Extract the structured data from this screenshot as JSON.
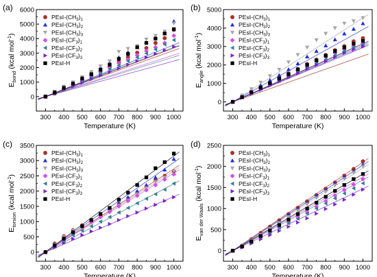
{
  "colors": {
    "PEsI-(CH3)1": "#a83228",
    "PEsI-(CH3)2": "#1f2ed6",
    "PEsI-(CH3)3": "#a6a6a6",
    "PEsI-(CF3)1": "#d44ee8",
    "PEsI-(CF3)2": "#35808f",
    "PEsI-(CF3)3": "#7a24c8",
    "PEsI-H": "#000000"
  },
  "chart_data": [
    {
      "type": "scatter",
      "panel": "(a)",
      "ylabel": "E",
      "ylabel_sub": "bond",
      "ylabel_unit": " (kcal mol",
      "ylabel_unit_sup": "-1",
      "ylabel_unit_end": ")",
      "xlabel": "Temperature (K)",
      "xlim": [
        250,
        1050
      ],
      "ylim": [
        -1000,
        6000
      ],
      "xticks": [
        300,
        400,
        500,
        600,
        700,
        800,
        900,
        1000
      ],
      "yticks": [
        0,
        1000,
        2000,
        3000,
        4000,
        5000,
        6000
      ],
      "legend_position": "top-left",
      "x": [
        300,
        350,
        400,
        450,
        500,
        550,
        600,
        650,
        700,
        750,
        800,
        850,
        900,
        950,
        1000
      ],
      "series": [
        {
          "name": "PEsI-(CH3)1",
          "base": "PEsI-(CH",
          "sub": "3",
          "suffix": ")",
          "index": "1",
          "marker": "circle",
          "slope": 4.55,
          "values": [
            0,
            210,
            520,
            820,
            1100,
            1430,
            1750,
            2060,
            2380,
            2720,
            3030,
            3350,
            3700,
            4030,
            4600
          ]
        },
        {
          "name": "PEsI-(CH3)2",
          "base": "PEsI-(CH",
          "sub": "3",
          "suffix": ")",
          "index": "2",
          "marker": "triangle-up",
          "slope": 5.1,
          "values": [
            0,
            300,
            640,
            960,
            1300,
            1650,
            2000,
            2340,
            2700,
            3050,
            3400,
            3750,
            4100,
            4480,
            5200
          ]
        },
        {
          "name": "PEsI-(CH3)3",
          "base": "PEsI-(CH",
          "sub": "3",
          "suffix": ")",
          "index": "3",
          "marker": "triangle-down",
          "slope": 4.9,
          "values": [
            0,
            350,
            700,
            1000,
            1350,
            1700,
            2100,
            2450,
            3100,
            3300,
            3500,
            3950,
            4200,
            4500,
            5050
          ]
        },
        {
          "name": "PEsI-(CF3)1",
          "base": "PEsI-(CF",
          "sub": "3",
          "suffix": ")",
          "index": "1",
          "marker": "diamond",
          "slope": 4.1,
          "values": [
            0,
            260,
            560,
            850,
            1150,
            1450,
            1700,
            2000,
            2300,
            2550,
            2850,
            3150,
            3400,
            3700,
            4200
          ]
        },
        {
          "name": "PEsI-(CF3)2",
          "base": "PEsI-(CF",
          "sub": "3",
          "suffix": ")",
          "index": "2",
          "marker": "triangle-left",
          "slope": 3.9,
          "values": [
            0,
            260,
            520,
            800,
            1080,
            1350,
            1620,
            1900,
            2150,
            2450,
            2700,
            2980,
            3250,
            3600,
            3900
          ]
        },
        {
          "name": "PEsI-(CF3)3",
          "base": "PEsI-(CF",
          "sub": "3",
          "suffix": ")",
          "index": "3",
          "marker": "triangle-right",
          "slope": 3.5,
          "values": [
            0,
            220,
            470,
            700,
            950,
            1200,
            1450,
            1700,
            1950,
            2200,
            2450,
            2700,
            2950,
            3200,
            3450
          ]
        },
        {
          "name": "PEsI-H",
          "base": "PEsI-H",
          "sub": "",
          "suffix": "",
          "index": "",
          "marker": "square",
          "slope": 4.8,
          "values": [
            0,
            280,
            600,
            900,
            1250,
            1550,
            1850,
            2200,
            2600,
            2950,
            3400,
            3700,
            4000,
            4350,
            4650
          ]
        }
      ]
    },
    {
      "type": "scatter",
      "panel": "(b)",
      "ylabel": "E",
      "ylabel_sub": "angle",
      "ylabel_unit": " (kcal mol",
      "ylabel_unit_sup": "-1",
      "ylabel_unit_end": ")",
      "xlabel": "Temperature (K)",
      "xlim": [
        250,
        1050
      ],
      "ylim": [
        -500,
        5000
      ],
      "xticks": [
        300,
        400,
        500,
        600,
        700,
        800,
        900,
        1000
      ],
      "yticks": [
        0,
        1000,
        2000,
        3000,
        4000,
        5000
      ],
      "legend_position": "top-left",
      "x": [
        300,
        350,
        400,
        450,
        500,
        550,
        600,
        650,
        700,
        750,
        800,
        850,
        900,
        950,
        1000
      ],
      "series": [
        {
          "name": "PEsI-(CH3)1",
          "base": "PEsI-(CH",
          "sub": "3",
          "suffix": ")",
          "index": "1",
          "marker": "circle",
          "slope": 3.55,
          "values": [
            0,
            260,
            520,
            780,
            1020,
            1280,
            1530,
            1780,
            2050,
            2290,
            2540,
            2800,
            3020,
            3280,
            3450
          ]
        },
        {
          "name": "PEsI-(CH3)2",
          "base": "PEsI-(CH",
          "sub": "3",
          "suffix": ")",
          "index": "2",
          "marker": "triangle-up",
          "slope": 5.6,
          "values": [
            0,
            320,
            620,
            900,
            1180,
            1450,
            1760,
            2080,
            2450,
            2750,
            3050,
            3380,
            3700,
            3950,
            4250
          ]
        },
        {
          "name": "PEsI-(CH3)3",
          "base": "PEsI-(CH",
          "sub": "3",
          "suffix": ")",
          "index": "3",
          "marker": "triangle-down",
          "slope": 6.5,
          "values": [
            0,
            350,
            700,
            1050,
            1400,
            1750,
            2150,
            2550,
            2950,
            3350,
            3700,
            4000,
            4250,
            4380,
            4550
          ]
        },
        {
          "name": "PEsI-(CF3)1",
          "base": "PEsI-(CF",
          "sub": "3",
          "suffix": ")",
          "index": "1",
          "marker": "diamond",
          "slope": 4.4,
          "values": [
            0,
            250,
            500,
            720,
            950,
            1200,
            1450,
            1700,
            1950,
            2200,
            2450,
            2650,
            2850,
            3000,
            3150
          ]
        },
        {
          "name": "PEsI-(CF3)2",
          "base": "PEsI-(CF",
          "sub": "3",
          "suffix": ")",
          "index": "2",
          "marker": "triangle-left",
          "slope": 4.3,
          "values": [
            0,
            240,
            480,
            700,
            930,
            1150,
            1380,
            1620,
            1850,
            2080,
            2300,
            2520,
            2750,
            2950,
            3100
          ]
        },
        {
          "name": "PEsI-(CF3)3",
          "base": "PEsI-(CF",
          "sub": "3",
          "suffix": ")",
          "index": "3",
          "marker": "triangle-right",
          "slope": 4.2,
          "values": [
            0,
            220,
            440,
            650,
            880,
            1100,
            1320,
            1550,
            1780,
            2000,
            2200,
            2420,
            2650,
            2830,
            3000
          ]
        },
        {
          "name": "PEsI-H",
          "base": "PEsI-H",
          "sub": "",
          "suffix": "",
          "index": "",
          "marker": "square",
          "slope": 4.5,
          "values": [
            0,
            260,
            520,
            770,
            1010,
            1260,
            1500,
            1760,
            2000,
            2250,
            2500,
            2750,
            2950,
            3150,
            3300
          ]
        }
      ]
    },
    {
      "type": "scatter",
      "panel": "(c)",
      "ylabel": "E",
      "ylabel_sub": "torsion",
      "ylabel_unit": " (kcal mol",
      "ylabel_unit_sup": "-1",
      "ylabel_unit_end": ")",
      "xlabel": "Temperature (K)",
      "xlim": [
        250,
        1050
      ],
      "ylim": [
        -300,
        3500
      ],
      "xticks": [
        300,
        400,
        500,
        600,
        700,
        800,
        900,
        1000
      ],
      "yticks": [
        0,
        500,
        1000,
        1500,
        2000,
        2500,
        3000,
        3500
      ],
      "legend_position": "top-left",
      "x": [
        300,
        350,
        400,
        450,
        500,
        550,
        600,
        650,
        700,
        750,
        800,
        850,
        900,
        950,
        1000
      ],
      "series": [
        {
          "name": "PEsI-(CH3)1",
          "base": "PEsI-(CH",
          "sub": "3",
          "suffix": ")",
          "index": "1",
          "marker": "circle",
          "slope": 3.9,
          "values": [
            0,
            280,
            520,
            720,
            880,
            1050,
            1230,
            1400,
            1580,
            1750,
            1950,
            2150,
            2350,
            2500,
            2650
          ]
        },
        {
          "name": "PEsI-(CH3)2",
          "base": "PEsI-(CH",
          "sub": "3",
          "suffix": ")",
          "index": "2",
          "marker": "triangle-up",
          "slope": 4.2,
          "values": [
            0,
            250,
            480,
            680,
            860,
            1030,
            1210,
            1400,
            1600,
            1800,
            2000,
            2200,
            2450,
            2700,
            3050
          ]
        },
        {
          "name": "PEsI-(CH3)3",
          "base": "PEsI-(CH",
          "sub": "3",
          "suffix": ")",
          "index": "3",
          "marker": "triangle-down",
          "slope": 3.8,
          "values": [
            0,
            250,
            500,
            700,
            850,
            1000,
            1180,
            1350,
            1530,
            1700,
            1900,
            2100,
            2300,
            2450,
            2650
          ]
        },
        {
          "name": "PEsI-(CF3)1",
          "base": "PEsI-(CF",
          "sub": "3",
          "suffix": ")",
          "index": "1",
          "marker": "diamond",
          "slope": 3.7,
          "values": [
            0,
            230,
            450,
            650,
            820,
            980,
            1150,
            1320,
            1500,
            1680,
            1850,
            2030,
            2200,
            2380,
            2550
          ]
        },
        {
          "name": "PEsI-(CF3)2",
          "base": "PEsI-(CF",
          "sub": "3",
          "suffix": ")",
          "index": "2",
          "marker": "triangle-left",
          "slope": 3.2,
          "values": [
            0,
            180,
            380,
            550,
            700,
            850,
            1000,
            1150,
            1300,
            1450,
            1600,
            1750,
            1900,
            2050,
            2250
          ]
        },
        {
          "name": "PEsI-(CF3)3",
          "base": "PEsI-(CF",
          "sub": "3",
          "suffix": ")",
          "index": "3",
          "marker": "triangle-right",
          "slope": 2.6,
          "values": [
            0,
            150,
            300,
            430,
            560,
            680,
            800,
            920,
            1050,
            1180,
            1300,
            1430,
            1550,
            1680,
            1800
          ]
        },
        {
          "name": "PEsI-H",
          "base": "PEsI-H",
          "sub": "",
          "suffix": "",
          "index": "",
          "marker": "square",
          "slope": 4.5,
          "values": [
            0,
            220,
            440,
            650,
            850,
            1050,
            1250,
            1450,
            1720,
            1950,
            2200,
            2450,
            2750,
            2950,
            3230
          ]
        }
      ]
    },
    {
      "type": "scatter",
      "panel": "(d)",
      "ylabel": "E",
      "ylabel_sub": "van der Waals",
      "ylabel_unit": " (kcal mol",
      "ylabel_unit_sup": "-1",
      "ylabel_unit_end": ")",
      "xlabel": "Temperature (K)",
      "xlim": [
        250,
        1050
      ],
      "ylim": [
        -250,
        2500
      ],
      "xticks": [
        300,
        400,
        500,
        600,
        700,
        800,
        900,
        1000
      ],
      "yticks": [
        0,
        500,
        1000,
        1500,
        2000,
        2500
      ],
      "legend_position": "top-left",
      "x": [
        300,
        350,
        400,
        450,
        500,
        550,
        600,
        650,
        700,
        750,
        800,
        850,
        900,
        950,
        1000
      ],
      "series": [
        {
          "name": "PEsI-(CH3)1",
          "base": "PEsI-(CH",
          "sub": "3",
          "suffix": ")",
          "index": "1",
          "marker": "circle",
          "slope": 3.0,
          "values": [
            0,
            120,
            270,
            420,
            570,
            720,
            870,
            1020,
            1170,
            1320,
            1470,
            1620,
            1780,
            1940,
            2120
          ]
        },
        {
          "name": "PEsI-(CH3)2",
          "base": "PEsI-(CH",
          "sub": "3",
          "suffix": ")",
          "index": "2",
          "marker": "triangle-up",
          "slope": 2.9,
          "values": [
            0,
            110,
            250,
            400,
            550,
            700,
            850,
            1000,
            1150,
            1300,
            1450,
            1600,
            1750,
            1900,
            2050
          ]
        },
        {
          "name": "PEsI-(CH3)3",
          "base": "PEsI-(CH",
          "sub": "3",
          "suffix": ")",
          "index": "3",
          "marker": "triangle-down",
          "slope": 2.8,
          "values": [
            0,
            110,
            240,
            380,
            520,
            660,
            800,
            950,
            1100,
            1250,
            1400,
            1550,
            1700,
            1850,
            2000
          ]
        },
        {
          "name": "PEsI-(CF3)1",
          "base": "PEsI-(CF",
          "sub": "3",
          "suffix": ")",
          "index": "1",
          "marker": "diamond",
          "slope": 2.5,
          "values": [
            0,
            90,
            200,
            320,
            440,
            560,
            680,
            800,
            920,
            1050,
            1180,
            1310,
            1440,
            1570,
            1700
          ]
        },
        {
          "name": "PEsI-(CF3)2",
          "base": "PEsI-(CF",
          "sub": "3",
          "suffix": ")",
          "index": "2",
          "marker": "triangle-left",
          "slope": 2.4,
          "values": [
            0,
            100,
            210,
            320,
            430,
            540,
            650,
            760,
            880,
            1000,
            1120,
            1240,
            1360,
            1480,
            1600
          ]
        },
        {
          "name": "PEsI-(CF3)3",
          "base": "PEsI-(CF",
          "sub": "3",
          "suffix": ")",
          "index": "3",
          "marker": "triangle-right",
          "slope": 2.1,
          "values": [
            0,
            80,
            170,
            270,
            370,
            470,
            570,
            670,
            770,
            880,
            990,
            1100,
            1210,
            1330,
            1450
          ]
        },
        {
          "name": "PEsI-H",
          "base": "PEsI-H",
          "sub": "",
          "suffix": "",
          "index": "",
          "marker": "square",
          "slope": 2.6,
          "values": [
            0,
            100,
            220,
            350,
            480,
            610,
            740,
            870,
            1000,
            1140,
            1280,
            1420,
            1560,
            1700,
            1820
          ]
        }
      ]
    }
  ]
}
